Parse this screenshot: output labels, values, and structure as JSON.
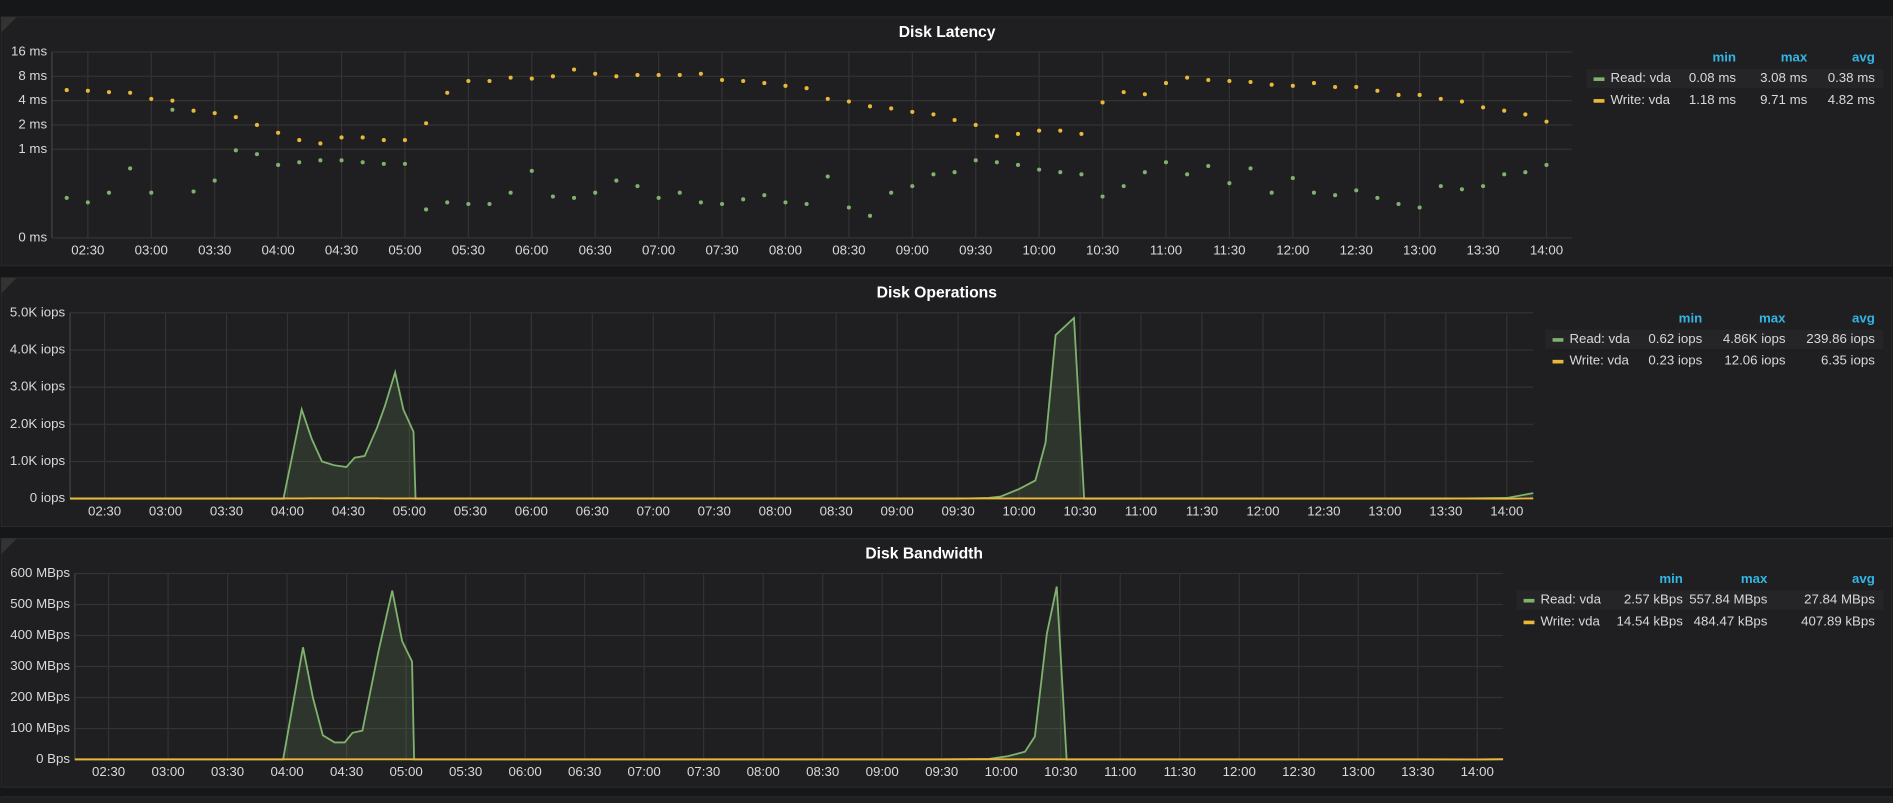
{
  "chart_data": [
    {
      "type": "scatter",
      "title": "Disk Latency",
      "log_base": 2,
      "grid": true,
      "xlim": [
        "02:13",
        "14:12"
      ],
      "xticks": [
        "02:30",
        "03:00",
        "03:30",
        "04:00",
        "04:30",
        "05:00",
        "05:30",
        "06:00",
        "06:30",
        "07:00",
        "07:30",
        "08:00",
        "08:30",
        "09:00",
        "09:30",
        "10:00",
        "10:30",
        "11:00",
        "11:30",
        "12:00",
        "12:30",
        "13:00",
        "13:30",
        "14:00"
      ],
      "ylim": [
        0.08,
        16
      ],
      "yticks": [
        {
          "value": 0.08,
          "label": "0 ms"
        },
        {
          "value": 1,
          "label": "1 ms"
        },
        {
          "value": 2,
          "label": "2 ms"
        },
        {
          "value": 4,
          "label": "4 ms"
        },
        {
          "value": 8,
          "label": "8 ms"
        },
        {
          "value": 16,
          "label": "16 ms"
        }
      ],
      "legend_columns": [
        "min",
        "max",
        "avg"
      ],
      "x": [
        "02:20",
        "02:30",
        "02:40",
        "02:50",
        "03:00",
        "03:10",
        "03:20",
        "03:30",
        "03:40",
        "03:50",
        "04:00",
        "04:10",
        "04:20",
        "04:30",
        "04:40",
        "04:50",
        "05:00",
        "05:10",
        "05:20",
        "05:30",
        "05:40",
        "05:50",
        "06:00",
        "06:10",
        "06:20",
        "06:30",
        "06:40",
        "06:50",
        "07:00",
        "07:10",
        "07:20",
        "07:30",
        "07:40",
        "07:50",
        "08:00",
        "08:10",
        "08:20",
        "08:30",
        "08:40",
        "08:50",
        "09:00",
        "09:10",
        "09:20",
        "09:30",
        "09:40",
        "09:50",
        "10:00",
        "10:10",
        "10:20",
        "10:30",
        "10:40",
        "10:50",
        "11:00",
        "11:10",
        "11:20",
        "11:30",
        "11:40",
        "11:50",
        "12:00",
        "12:10",
        "12:20",
        "12:30",
        "12:40",
        "12:50",
        "13:00",
        "13:10",
        "13:20",
        "13:30",
        "13:40",
        "13:50",
        "14:00"
      ],
      "series": [
        {
          "name": "Read: vda",
          "color": "#7eb26d",
          "stats": [
            "0.08 ms",
            "3.08 ms",
            "0.38 ms"
          ],
          "values": [
            0.25,
            0.22,
            0.29,
            0.58,
            0.29,
            3.08,
            0.3,
            0.41,
            0.97,
            0.87,
            0.64,
            0.69,
            0.73,
            0.73,
            0.69,
            0.66,
            0.66,
            0.18,
            0.22,
            0.21,
            0.21,
            0.29,
            0.54,
            0.26,
            0.25,
            0.29,
            0.41,
            0.35,
            0.25,
            0.29,
            0.22,
            0.21,
            0.24,
            0.27,
            0.22,
            0.21,
            0.46,
            0.19,
            0.15,
            0.29,
            0.35,
            0.49,
            0.52,
            0.73,
            0.69,
            0.64,
            0.56,
            0.52,
            0.49,
            0.26,
            0.35,
            0.52,
            0.69,
            0.49,
            0.62,
            0.38,
            0.58,
            0.29,
            0.44,
            0.29,
            0.27,
            0.31,
            0.25,
            0.21,
            0.19,
            0.35,
            0.32,
            0.35,
            0.49,
            0.52,
            0.64
          ]
        },
        {
          "name": "Write: vda",
          "color": "#eab839",
          "stats": [
            "1.18 ms",
            "9.71 ms",
            "4.82 ms"
          ],
          "values": [
            5.4,
            5.3,
            5.1,
            5.0,
            4.2,
            4.0,
            3.0,
            2.8,
            2.5,
            2.0,
            1.6,
            1.3,
            1.18,
            1.4,
            1.4,
            1.3,
            1.3,
            2.1,
            5.0,
            7.0,
            7.0,
            7.7,
            7.5,
            8.0,
            9.71,
            8.6,
            8.0,
            8.3,
            8.3,
            8.3,
            8.6,
            7.2,
            7.0,
            6.6,
            6.1,
            5.7,
            4.2,
            3.9,
            3.4,
            3.2,
            2.9,
            2.7,
            2.3,
            2.0,
            1.45,
            1.55,
            1.7,
            1.7,
            1.55,
            3.8,
            5.1,
            4.8,
            6.6,
            7.7,
            7.2,
            7.0,
            6.8,
            6.3,
            6.1,
            6.6,
            5.9,
            5.9,
            5.3,
            4.7,
            4.7,
            4.2,
            3.9,
            3.3,
            3.0,
            2.7,
            2.2
          ]
        }
      ]
    },
    {
      "type": "line",
      "title": "Disk Operations",
      "grid": true,
      "xlim": [
        "02:13",
        "14:13"
      ],
      "xticks": [
        "02:30",
        "03:00",
        "03:30",
        "04:00",
        "04:30",
        "05:00",
        "05:30",
        "06:00",
        "06:30",
        "07:00",
        "07:30",
        "08:00",
        "08:30",
        "09:00",
        "09:30",
        "10:00",
        "10:30",
        "11:00",
        "11:30",
        "12:00",
        "12:30",
        "13:00",
        "13:30",
        "14:00"
      ],
      "ylim": [
        0,
        5000
      ],
      "yticks": [
        {
          "value": 0,
          "label": "0 iops"
        },
        {
          "value": 1000,
          "label": "1.0K iops"
        },
        {
          "value": 2000,
          "label": "2.0K iops"
        },
        {
          "value": 3000,
          "label": "3.0K iops"
        },
        {
          "value": 4000,
          "label": "4.0K iops"
        },
        {
          "value": 5000,
          "label": "5.0K iops"
        }
      ],
      "legend_columns": [
        "min",
        "max",
        "avg"
      ],
      "x": [
        "02:13",
        "02:30",
        "03:00",
        "03:30",
        "03:58",
        "04:07",
        "04:12",
        "04:17",
        "04:23",
        "04:29",
        "04:33",
        "04:38",
        "04:44",
        "04:48",
        "04:53",
        "04:57",
        "05:02",
        "05:03",
        "05:30",
        "06:00",
        "06:30",
        "07:00",
        "07:30",
        "08:00",
        "08:30",
        "09:00",
        "09:30",
        "09:45",
        "09:51",
        "10:00",
        "10:08",
        "10:13",
        "10:18",
        "10:27",
        "10:32",
        "11:00",
        "11:30",
        "12:00",
        "12:30",
        "13:00",
        "13:30",
        "14:00",
        "14:13"
      ],
      "series": [
        {
          "name": "Read: vda",
          "color": "#7eb26d",
          "stats": [
            "0.62 iops",
            "4.86K iops",
            "239.86 iops"
          ],
          "values": [
            1.0,
            0.8,
            0.9,
            0.7,
            0.62,
            2400,
            1600,
            1000,
            900,
            850,
            1100,
            1150,
            1900,
            2500,
            3400,
            2400,
            1800,
            0.9,
            1.0,
            0.8,
            1.2,
            0.9,
            1.1,
            0.7,
            0.9,
            1.0,
            1.2,
            20,
            60,
            260,
            490,
            1500,
            4400,
            4860,
            1.5,
            1.0,
            0.9,
            1.1,
            1.0,
            0.8,
            1.2,
            20,
            150
          ]
        },
        {
          "name": "Write: vda",
          "color": "#eab839",
          "stats": [
            "0.23 iops",
            "12.06 iops",
            "6.35 iops"
          ],
          "values": [
            5,
            6,
            7,
            6,
            6,
            8,
            9,
            10,
            11,
            12.06,
            11,
            10,
            9,
            8,
            7,
            7,
            6,
            6,
            6,
            5,
            6,
            7,
            6,
            5,
            6,
            5,
            6,
            6,
            6,
            7,
            7,
            8,
            8,
            7,
            6,
            6,
            5,
            6,
            5,
            6,
            5,
            0.23,
            6
          ]
        }
      ]
    },
    {
      "type": "line",
      "title": "Disk Bandwidth",
      "grid": true,
      "xlim": [
        "02:13",
        "14:13"
      ],
      "xticks": [
        "02:30",
        "03:00",
        "03:30",
        "04:00",
        "04:30",
        "05:00",
        "05:30",
        "06:00",
        "06:30",
        "07:00",
        "07:30",
        "08:00",
        "08:30",
        "09:00",
        "09:30",
        "10:00",
        "10:30",
        "11:00",
        "11:30",
        "12:00",
        "12:30",
        "13:00",
        "13:30",
        "14:00"
      ],
      "ylim": [
        0,
        600
      ],
      "yticks": [
        {
          "value": 0,
          "label": "0 Bps"
        },
        {
          "value": 100,
          "label": "100 MBps"
        },
        {
          "value": 200,
          "label": "200 MBps"
        },
        {
          "value": 300,
          "label": "300 MBps"
        },
        {
          "value": 400,
          "label": "400 MBps"
        },
        {
          "value": 500,
          "label": "500 MBps"
        },
        {
          "value": 600,
          "label": "600 MBps"
        }
      ],
      "legend_columns": [
        "min",
        "max",
        "avg"
      ],
      "x": [
        "02:13",
        "02:30",
        "03:00",
        "03:30",
        "03:58",
        "04:08",
        "04:13",
        "04:18",
        "04:24",
        "04:29",
        "04:33",
        "04:38",
        "04:46",
        "04:53",
        "04:58",
        "05:03",
        "05:04",
        "05:30",
        "06:00",
        "06:30",
        "07:00",
        "07:30",
        "08:00",
        "08:30",
        "09:00",
        "09:30",
        "09:54",
        "10:03",
        "10:12",
        "10:17",
        "10:23",
        "10:28",
        "10:33",
        "11:00",
        "11:30",
        "12:00",
        "12:30",
        "13:00",
        "13:30",
        "14:00",
        "14:13"
      ],
      "series": [
        {
          "name": "Read: vda",
          "color": "#7eb26d",
          "stats": [
            "2.57 kBps",
            "557.84 MBps",
            "27.84 MBps"
          ],
          "values": [
            0.003,
            0.004,
            0.003,
            0.003,
            0.003,
            362,
            199,
            78,
            55,
            55,
            86,
            93,
            347,
            545,
            382,
            316,
            0.003,
            0.003,
            0.004,
            0.003,
            0.003,
            0.0026,
            0.003,
            0.004,
            0.003,
            0.003,
            2,
            10,
            25,
            74,
            405,
            557.84,
            0.003,
            0.003,
            0.004,
            0.003,
            0.003,
            0.003,
            0.004,
            0.003,
            1.0
          ]
        },
        {
          "name": "Write: vda",
          "color": "#eab839",
          "stats": [
            "14.54 kBps",
            "484.47 kBps",
            "407.89 kBps"
          ],
          "values": [
            0.4,
            0.41,
            0.42,
            0.4,
            0.39,
            0.41,
            0.42,
            0.43,
            0.44,
            0.45,
            0.46,
            0.47,
            0.484,
            0.46,
            0.44,
            0.42,
            0.41,
            0.4,
            0.41,
            0.4,
            0.39,
            0.4,
            0.41,
            0.4,
            0.41,
            0.4,
            0.41,
            0.42,
            0.43,
            0.44,
            0.45,
            0.44,
            0.42,
            0.4,
            0.41,
            0.4,
            0.39,
            0.4,
            0.41,
            0.01454,
            0.4
          ]
        }
      ]
    }
  ]
}
